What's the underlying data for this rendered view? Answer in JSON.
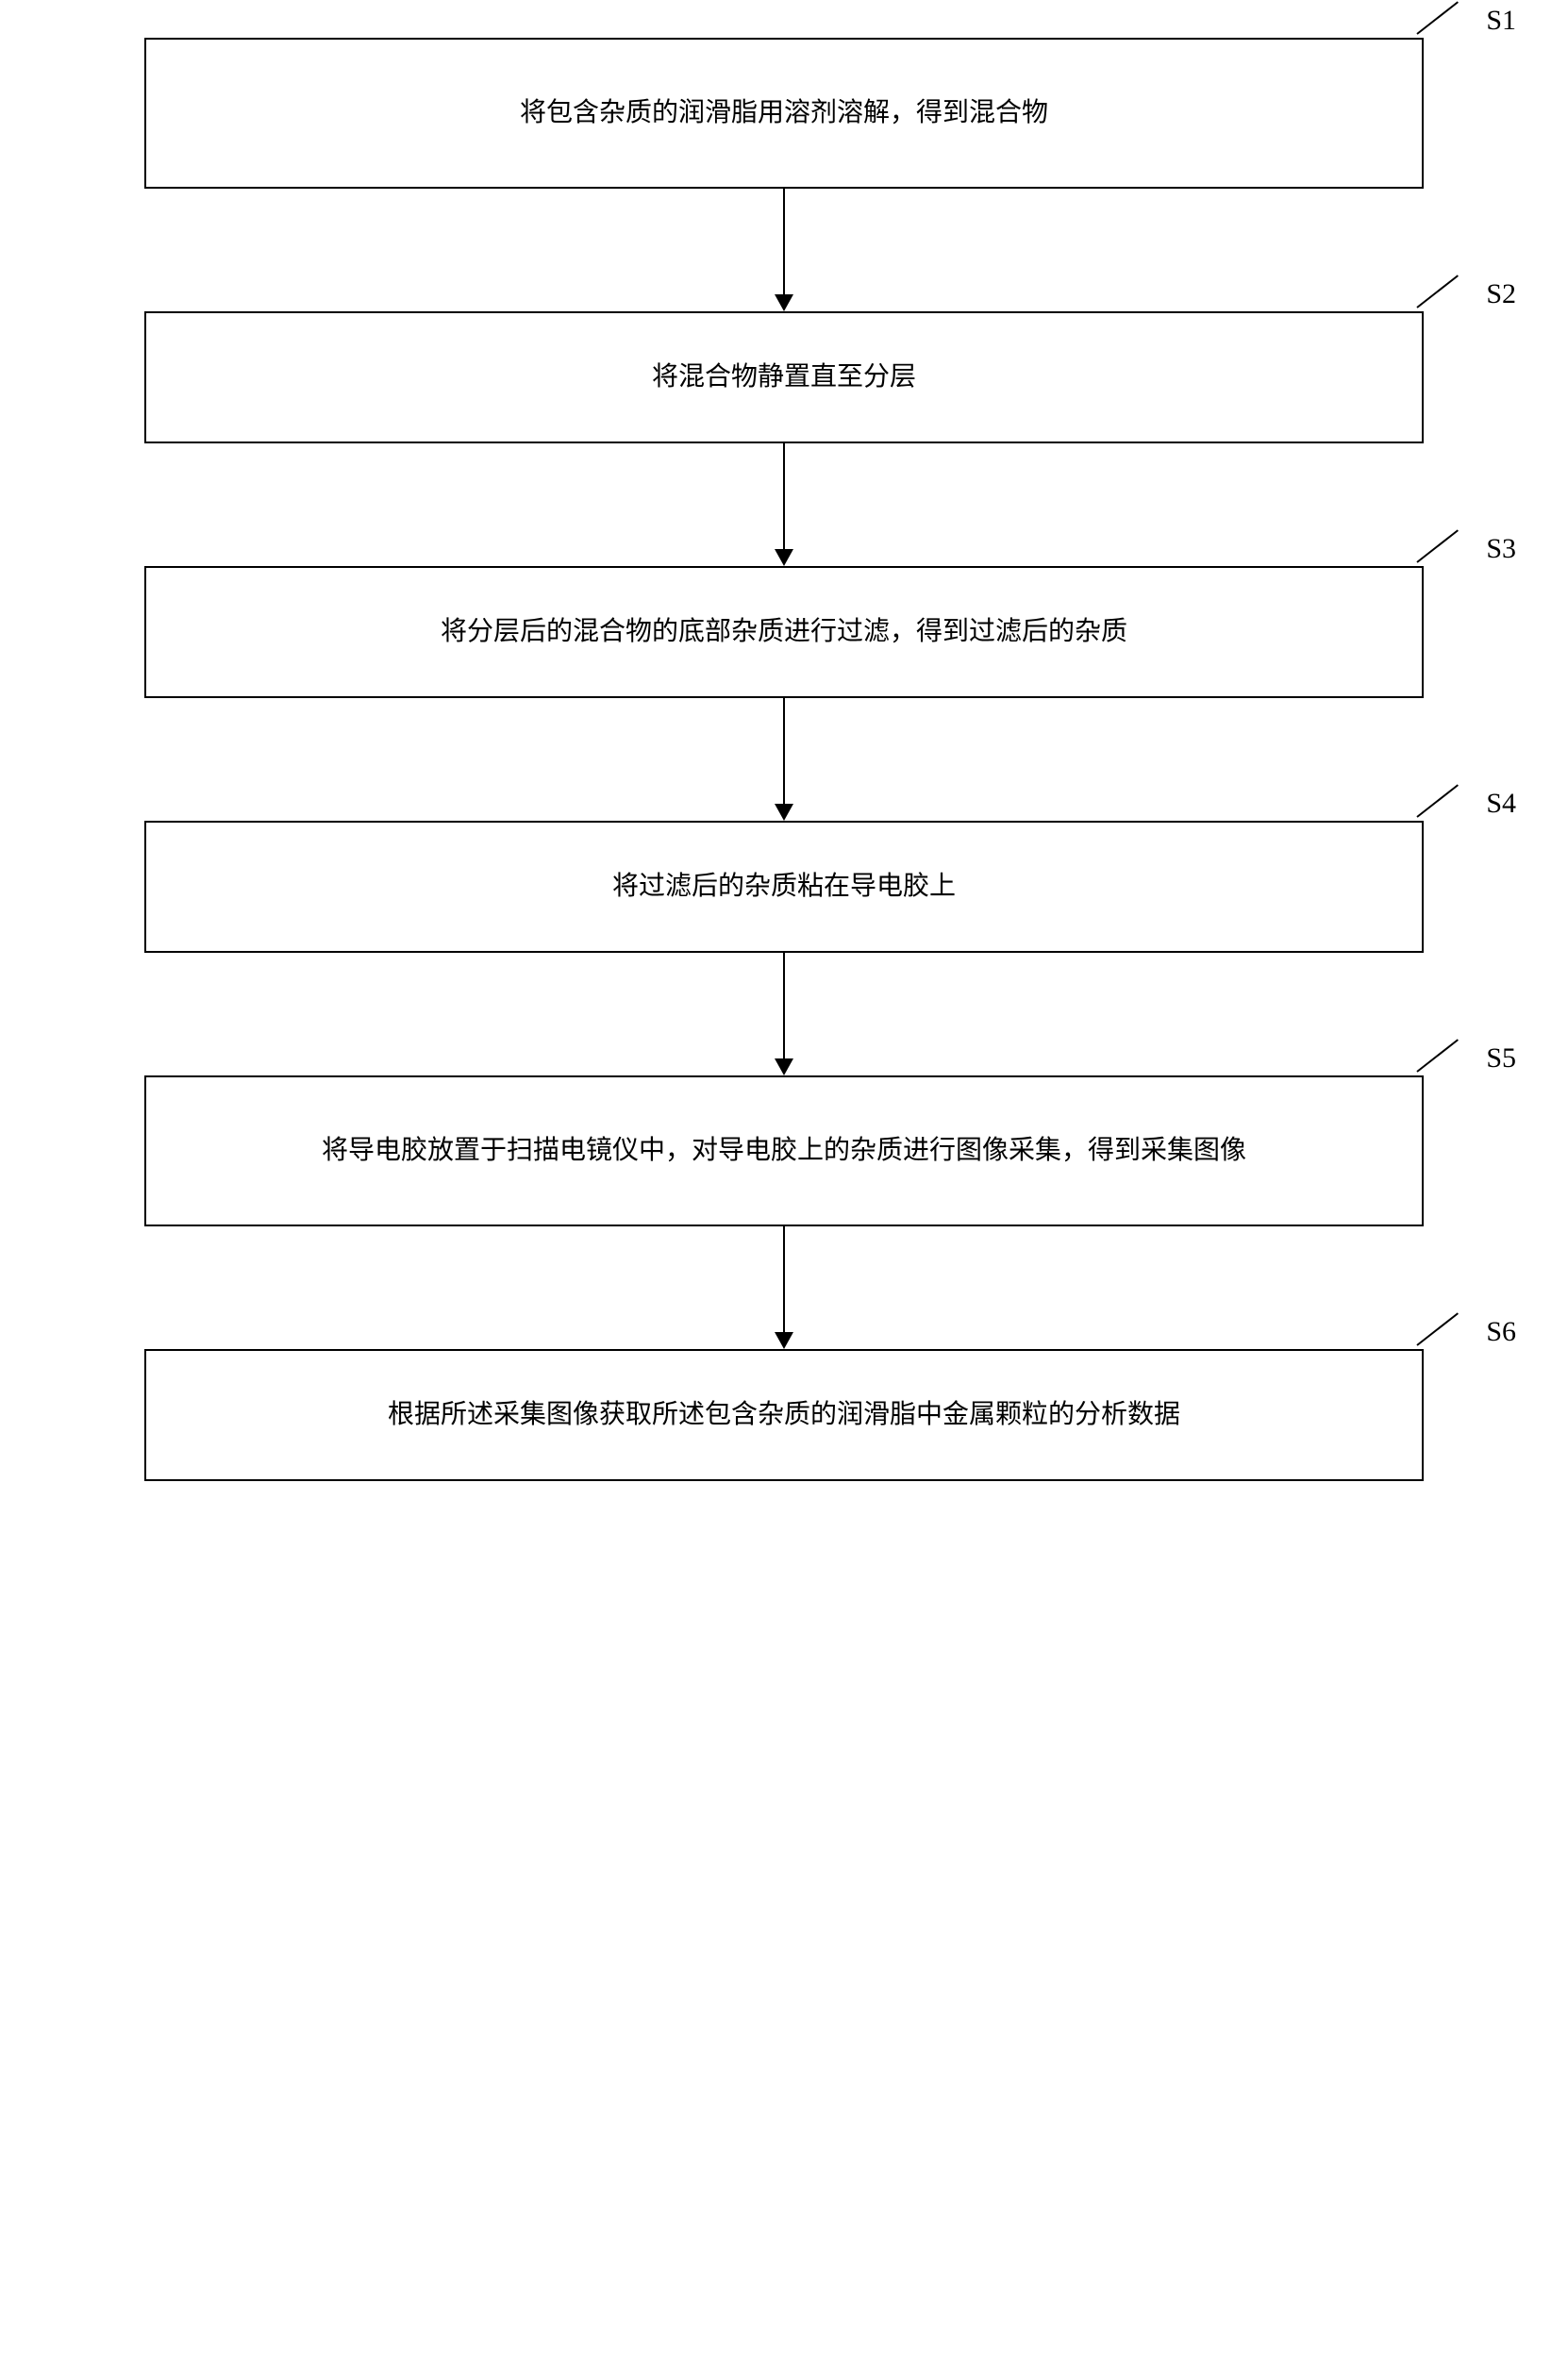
{
  "flowchart": {
    "type": "flowchart",
    "background_color": "#ffffff",
    "box_border_color": "#000000",
    "box_border_width": 2,
    "text_color": "#000000",
    "font_family": "SimSun",
    "box_fontsize": 28,
    "label_fontsize": 30,
    "arrow_color": "#000000",
    "arrow_width": 2,
    "arrow_spacing": 130,
    "box_width_pct": 88,
    "steps": [
      {
        "label": "S1",
        "text": "将包含杂质的润滑脂用溶剂溶解，得到混合物",
        "height": 160
      },
      {
        "label": "S2",
        "text": "将混合物静置直至分层",
        "height": 140
      },
      {
        "label": "S3",
        "text": "将分层后的混合物的底部杂质进行过滤，得到过滤后的杂质",
        "height": 140
      },
      {
        "label": "S4",
        "text": "将过滤后的杂质粘在导电胶上",
        "height": 140
      },
      {
        "label": "S5",
        "text": "将导电胶放置于扫描电镜仪中，对导电胶上的杂质进行图像采集，得到采集图像",
        "height": 160
      },
      {
        "label": "S6",
        "text": "根据所述采集图像获取所述包含杂质的润滑脂中金属颗粒的分析数据",
        "height": 140
      }
    ]
  }
}
